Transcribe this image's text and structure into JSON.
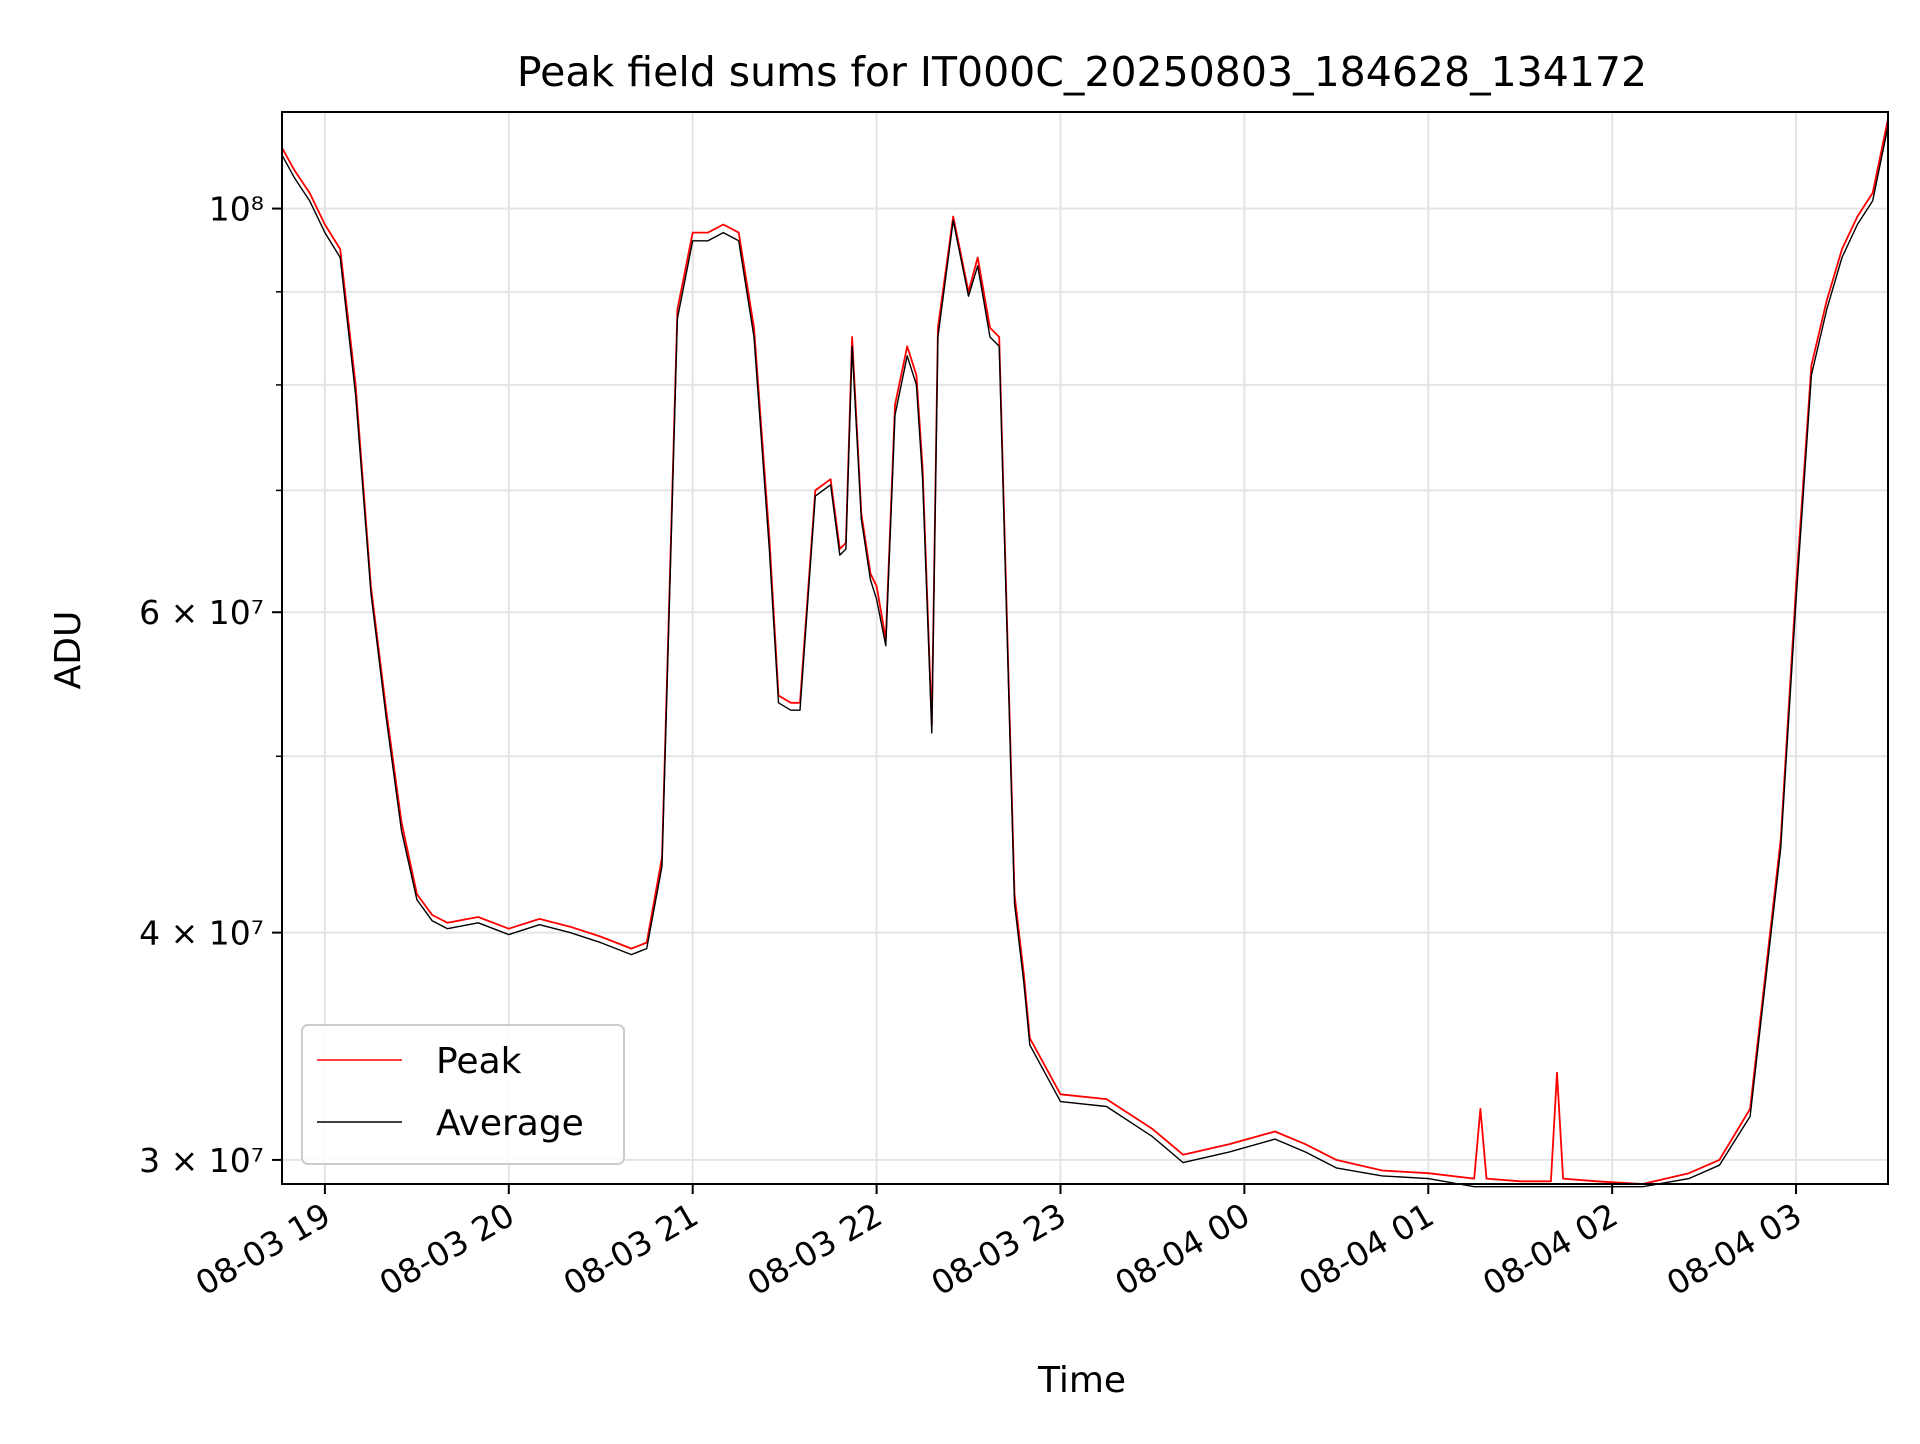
{
  "chart_data": {
    "type": "line",
    "title": "Peak field sums for IT000C_20250803_184628_134172",
    "xlabel": "Time",
    "ylabel": "ADU",
    "y_scale": "log",
    "ylim": [
      29100000,
      113000000
    ],
    "xlim": [
      "08-03 18:46",
      "08-04 03:30"
    ],
    "grid": true,
    "legend_position": "lower left",
    "x_ticks": [
      "08-03 19",
      "08-03 20",
      "08-03 21",
      "08-03 22",
      "08-03 23",
      "08-04 00",
      "08-04 01",
      "08-04 02",
      "08-04 03"
    ],
    "y_ticks": [
      {
        "value": 30000000,
        "label": "3 × 10⁷"
      },
      {
        "value": 40000000,
        "label": "4 × 10⁷"
      },
      {
        "value": 60000000,
        "label": "6 × 10⁷"
      },
      {
        "value": 100000000,
        "label": "10⁸"
      }
    ],
    "y_minor_ticks": [
      50000000,
      70000000,
      80000000,
      90000000
    ],
    "series": [
      {
        "name": "Peak",
        "color": "#ff0000",
        "x": [
          "08-03 18:46",
          "08-03 18:50",
          "08-03 18:55",
          "08-03 19:00",
          "08-03 19:05",
          "08-03 19:10",
          "08-03 19:15",
          "08-03 19:20",
          "08-03 19:25",
          "08-03 19:30",
          "08-03 19:35",
          "08-03 19:40",
          "08-03 19:50",
          "08-03 20:00",
          "08-03 20:10",
          "08-03 20:20",
          "08-03 20:30",
          "08-03 20:40",
          "08-03 20:45",
          "08-03 20:50",
          "08-03 20:55",
          "08-03 21:00",
          "08-03 21:05",
          "08-03 21:10",
          "08-03 21:15",
          "08-03 21:20",
          "08-03 21:25",
          "08-03 21:28",
          "08-03 21:32",
          "08-03 21:35",
          "08-03 21:40",
          "08-03 21:45",
          "08-03 21:48",
          "08-03 21:50",
          "08-03 21:52",
          "08-03 21:55",
          "08-03 21:58",
          "08-03 22:00",
          "08-03 22:03",
          "08-03 22:06",
          "08-03 22:10",
          "08-03 22:13",
          "08-03 22:15",
          "08-03 22:18",
          "08-03 22:20",
          "08-03 22:25",
          "08-03 22:30",
          "08-03 22:33",
          "08-03 22:37",
          "08-03 22:40",
          "08-03 22:45",
          "08-03 22:48",
          "08-03 22:50",
          "08-03 23:00",
          "08-03 23:15",
          "08-03 23:30",
          "08-03 23:40",
          "08-03 23:55",
          "08-04 00:10",
          "08-04 00:20",
          "08-04 00:30",
          "08-04 00:45",
          "08-04 01:00",
          "08-04 01:15",
          "08-04 01:17",
          "08-04 01:19",
          "08-04 01:30",
          "08-04 01:40",
          "08-04 01:42",
          "08-04 01:44",
          "08-04 01:55",
          "08-04 02:10",
          "08-04 02:25",
          "08-04 02:35",
          "08-04 02:45",
          "08-04 02:55",
          "08-04 03:00",
          "08-04 03:05",
          "08-04 03:10",
          "08-04 03:15",
          "08-04 03:20",
          "08-04 03:25",
          "08-04 03:30"
        ],
        "y": [
          108000000,
          105000000,
          102000000,
          98000000,
          95000000,
          80000000,
          62000000,
          53000000,
          46000000,
          42000000,
          40900000,
          40500000,
          40800000,
          40200000,
          40700000,
          40300000,
          39800000,
          39200000,
          39500000,
          44000000,
          88000000,
          97000000,
          97000000,
          98000000,
          97000000,
          86000000,
          66000000,
          54000000,
          53500000,
          53500000,
          70000000,
          71000000,
          65000000,
          65500000,
          85000000,
          68000000,
          63000000,
          62000000,
          58000000,
          78000000,
          84000000,
          81000000,
          72000000,
          52000000,
          86000000,
          99000000,
          90000000,
          94000000,
          86000000,
          85000000,
          42000000,
          38000000,
          35000000,
          32600000,
          32400000,
          31200000,
          30200000,
          30600000,
          31100000,
          30600000,
          30000000,
          29600000,
          29500000,
          29300000,
          32000000,
          29300000,
          29200000,
          29200000,
          33500000,
          29300000,
          29200000,
          29100000,
          29500000,
          30000000,
          32000000,
          45000000,
          62000000,
          82000000,
          89000000,
          95000000,
          99000000,
          102000000,
          112000000
        ]
      },
      {
        "name": "Average",
        "color": "#000000",
        "x": [
          "08-03 18:46",
          "08-03 18:50",
          "08-03 18:55",
          "08-03 19:00",
          "08-03 19:05",
          "08-03 19:10",
          "08-03 19:15",
          "08-03 19:20",
          "08-03 19:25",
          "08-03 19:30",
          "08-03 19:35",
          "08-03 19:40",
          "08-03 19:50",
          "08-03 20:00",
          "08-03 20:10",
          "08-03 20:20",
          "08-03 20:30",
          "08-03 20:40",
          "08-03 20:45",
          "08-03 20:50",
          "08-03 20:55",
          "08-03 21:00",
          "08-03 21:05",
          "08-03 21:10",
          "08-03 21:15",
          "08-03 21:20",
          "08-03 21:25",
          "08-03 21:28",
          "08-03 21:32",
          "08-03 21:35",
          "08-03 21:40",
          "08-03 21:45",
          "08-03 21:48",
          "08-03 21:50",
          "08-03 21:52",
          "08-03 21:55",
          "08-03 21:58",
          "08-03 22:00",
          "08-03 22:03",
          "08-03 22:06",
          "08-03 22:10",
          "08-03 22:13",
          "08-03 22:15",
          "08-03 22:18",
          "08-03 22:20",
          "08-03 22:25",
          "08-03 22:30",
          "08-03 22:33",
          "08-03 22:37",
          "08-03 22:40",
          "08-03 22:45",
          "08-03 22:48",
          "08-03 22:50",
          "08-03 23:00",
          "08-03 23:15",
          "08-03 23:30",
          "08-03 23:40",
          "08-03 23:55",
          "08-04 00:10",
          "08-04 00:20",
          "08-04 00:30",
          "08-04 00:45",
          "08-04 01:00",
          "08-04 01:15",
          "08-04 01:30",
          "08-04 01:40",
          "08-04 01:55",
          "08-04 02:10",
          "08-04 02:25",
          "08-04 02:35",
          "08-04 02:45",
          "08-04 02:55",
          "08-04 03:00",
          "08-04 03:05",
          "08-04 03:10",
          "08-04 03:15",
          "08-04 03:20",
          "08-04 03:25",
          "08-04 03:30"
        ],
        "y": [
          107000000,
          104000000,
          101000000,
          97000000,
          94000000,
          79000000,
          61500000,
          52500000,
          45500000,
          41700000,
          40600000,
          40200000,
          40500000,
          39900000,
          40400000,
          40000000,
          39500000,
          38900000,
          39200000,
          43500000,
          87000000,
          96000000,
          96000000,
          97000000,
          96000000,
          85000000,
          65000000,
          53500000,
          53000000,
          53000000,
          69500000,
          70500000,
          64500000,
          65000000,
          84000000,
          67500000,
          62500000,
          61000000,
          57500000,
          77000000,
          83000000,
          80000000,
          71000000,
          51500000,
          85000000,
          98500000,
          89500000,
          93000000,
          85000000,
          84000000,
          41500000,
          37600000,
          34700000,
          32300000,
          32100000,
          30900000,
          29900000,
          30300000,
          30800000,
          30300000,
          29700000,
          29400000,
          29300000,
          29000000,
          29000000,
          29000000,
          29000000,
          29000000,
          29300000,
          29800000,
          31700000,
          44500000,
          61000000,
          81000000,
          88000000,
          94000000,
          98000000,
          101000000,
          111000000
        ]
      }
    ]
  }
}
